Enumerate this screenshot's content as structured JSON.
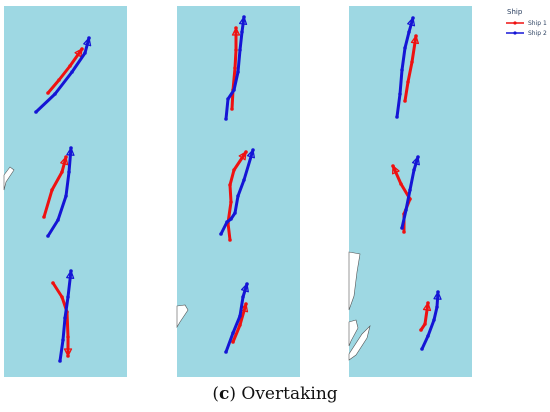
{
  "caption": {
    "label": "c",
    "text": "Overtaking"
  },
  "legend": {
    "title": "Ship",
    "items": [
      {
        "name": "Ship 1",
        "color": "#ee1111"
      },
      {
        "name": "Ship 2",
        "color": "#1515d5"
      }
    ]
  },
  "colors": {
    "water": "#9ed8e3",
    "land": "#ffffff",
    "coast": "#555555"
  },
  "chart_data": {
    "type": "line",
    "panels": [
      {
        "series": [
          {
            "name": "Ship 1",
            "points": [
              [
                48,
                93
              ],
              [
                59,
                80
              ],
              [
                70,
                66
              ],
              [
                82,
                49
              ]
            ]
          },
          {
            "name": "Ship 2",
            "points": [
              [
                36,
                112
              ],
              [
                55,
                94
              ],
              [
                72,
                72
              ],
              [
                85,
                53
              ],
              [
                89,
                38
              ]
            ]
          }
        ]
      },
      {
        "series": [
          {
            "name": "Ship 1",
            "points": [
              [
                44,
                217
              ],
              [
                52,
                190
              ],
              [
                62,
                172
              ],
              [
                66,
                157
              ]
            ]
          },
          {
            "name": "Ship 2",
            "points": [
              [
                48,
                236
              ],
              [
                58,
                220
              ],
              [
                66,
                196
              ],
              [
                69,
                172
              ],
              [
                71,
                148
              ]
            ]
          }
        ]
      },
      {
        "series": [
          {
            "name": "Ship 1",
            "points": [
              [
                53,
                283
              ],
              [
                62,
                297
              ],
              [
                67,
                312
              ],
              [
                68,
                337
              ],
              [
                68,
                356
              ]
            ]
          },
          {
            "name": "Ship 2",
            "points": [
              [
                60,
                361
              ],
              [
                63,
                340
              ],
              [
                65,
                318
              ],
              [
                68,
                297
              ],
              [
                71,
                271
              ]
            ]
          }
        ]
      },
      {
        "series": [
          {
            "name": "Ship 1",
            "points": [
              [
                232,
                109
              ],
              [
                233,
                90
              ],
              [
                235,
                68
              ],
              [
                236,
                50
              ],
              [
                236,
                28
              ]
            ]
          },
          {
            "name": "Ship 2",
            "points": [
              [
                226,
                119
              ],
              [
                228,
                99
              ],
              [
                234,
                90
              ],
              [
                238,
                72
              ],
              [
                240,
                50
              ],
              [
                242,
                32
              ],
              [
                244,
                17
              ]
            ]
          }
        ]
      },
      {
        "series": [
          {
            "name": "Ship 1",
            "points": [
              [
                230,
                240
              ],
              [
                228,
                223
              ],
              [
                231,
                202
              ],
              [
                230,
                185
              ],
              [
                234,
                170
              ],
              [
                246,
                152
              ]
            ]
          },
          {
            "name": "Ship 2",
            "points": [
              [
                221,
                234
              ],
              [
                227,
                222
              ],
              [
                231,
                219
              ],
              [
                235,
                213
              ],
              [
                238,
                196
              ],
              [
                244,
                180
              ],
              [
                253,
                150
              ]
            ]
          }
        ]
      },
      {
        "series": [
          {
            "name": "Ship 1",
            "points": [
              [
                233,
                342
              ],
              [
                240,
                325
              ],
              [
                246,
                304
              ]
            ]
          },
          {
            "name": "Ship 2",
            "points": [
              [
                226,
                352
              ],
              [
                233,
                333
              ],
              [
                240,
                316
              ],
              [
                243,
                297
              ],
              [
                247,
                284
              ]
            ]
          }
        ]
      },
      {
        "series": [
          {
            "name": "Ship 1",
            "points": [
              [
                405,
                101
              ],
              [
                408,
                82
              ],
              [
                412,
                62
              ],
              [
                416,
                36
              ]
            ]
          },
          {
            "name": "Ship 2",
            "points": [
              [
                397,
                117
              ],
              [
                400,
                94
              ],
              [
                402,
                70
              ],
              [
                405,
                48
              ],
              [
                409,
                32
              ],
              [
                413,
                18
              ]
            ]
          }
        ]
      },
      {
        "series": [
          {
            "name": "Ship 1",
            "points": [
              [
                404,
                232
              ],
              [
                404,
                214
              ],
              [
                410,
                199
              ],
              [
                401,
                184
              ],
              [
                393,
                166
              ]
            ]
          },
          {
            "name": "Ship 2",
            "points": [
              [
                402,
                228
              ],
              [
                406,
                210
              ],
              [
                410,
                190
              ],
              [
                414,
                170
              ],
              [
                418,
                157
              ]
            ]
          }
        ]
      },
      {
        "series": [
          {
            "name": "Ship 1",
            "points": [
              [
                421,
                330
              ],
              [
                425,
                324
              ],
              [
                428,
                303
              ]
            ]
          },
          {
            "name": "Ship 2",
            "points": [
              [
                422,
                349
              ],
              [
                428,
                336
              ],
              [
                434,
                320
              ],
              [
                437,
                307
              ],
              [
                438,
                292
              ]
            ]
          }
        ]
      }
    ]
  }
}
